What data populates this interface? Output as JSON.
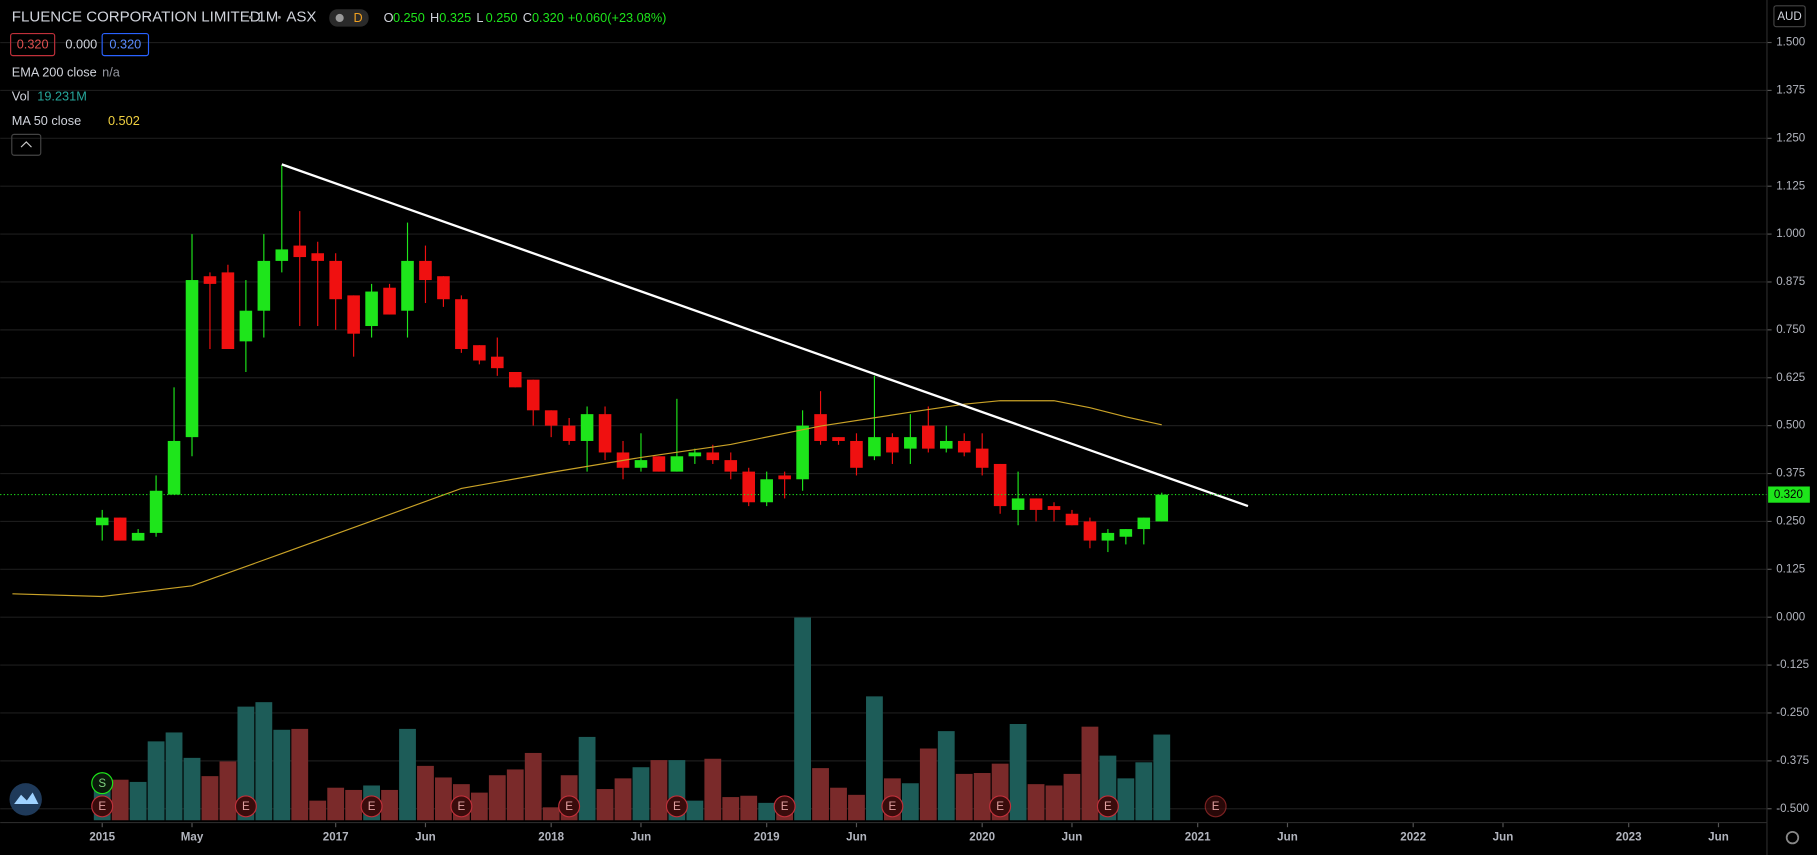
{
  "header": {
    "symbol": "FLUENCE CORPORATION LIMITED",
    "interval": "1M",
    "exchange": "ASX",
    "interval_badge": "D",
    "ohlc": [
      {
        "key": "O",
        "value": "0.250"
      },
      {
        "key": "H",
        "value": "0.325"
      },
      {
        "key": "L",
        "value": "0.250"
      },
      {
        "key": "C",
        "value": "0.320"
      }
    ],
    "change": "+0.060",
    "change_pct": "(+23.08%)",
    "bid": "0.320",
    "spread": "0.000",
    "ask": "0.320",
    "indicators": [
      {
        "name": "EMA 200 close",
        "value": "n/a"
      },
      {
        "name": "Vol",
        "value": "19.231M"
      },
      {
        "name": "MA 50 close",
        "value": "0.502"
      }
    ],
    "currency": "AUD"
  },
  "chart_data": {
    "type": "candlestick",
    "xlim": [
      -5.68,
      92.7
    ],
    "ylim": [
      -0.53,
      1.611
    ],
    "xticks": [
      {
        "value": 0,
        "label": "2015"
      },
      {
        "value": 5,
        "label": "May"
      },
      {
        "value": 13,
        "label": "2017"
      },
      {
        "value": 18,
        "label": "Jun"
      },
      {
        "value": 25,
        "label": "2018"
      },
      {
        "value": 30,
        "label": "Jun"
      },
      {
        "value": 37,
        "label": "2019"
      },
      {
        "value": 42,
        "label": "Jun"
      },
      {
        "value": 49,
        "label": "2020"
      },
      {
        "value": 54,
        "label": "Jun"
      },
      {
        "value": 61,
        "label": "2021"
      },
      {
        "value": 66,
        "label": "Jun"
      },
      {
        "value": 73,
        "label": "2022"
      },
      {
        "value": 78,
        "label": "Jun"
      },
      {
        "value": 85,
        "label": "2023"
      },
      {
        "value": 90,
        "label": "Jun"
      }
    ],
    "yticks": [
      {
        "value": 1.5,
        "label": "1.500"
      },
      {
        "value": 1.375,
        "label": "1.375"
      },
      {
        "value": 1.25,
        "label": "1.250"
      },
      {
        "value": 1.125,
        "label": "1.125"
      },
      {
        "value": 1,
        "label": "1.000"
      },
      {
        "value": 0.875,
        "label": "0.875"
      },
      {
        "value": 0.75,
        "label": "0.750"
      },
      {
        "value": 0.625,
        "label": "0.625"
      },
      {
        "value": 0.5,
        "label": "0.500"
      },
      {
        "value": 0.375,
        "label": "0.375"
      },
      {
        "value": 0.25,
        "label": "0.250"
      },
      {
        "value": 0.125,
        "label": "0.125"
      },
      {
        "value": 0,
        "label": "0.000"
      },
      {
        "value": -0.125,
        "label": "-0.125"
      },
      {
        "value": -0.25,
        "label": "-0.250"
      },
      {
        "value": -0.375,
        "label": "-0.375"
      },
      {
        "value": -0.5,
        "label": "-0.500"
      }
    ],
    "grid": true,
    "up_color": "#1ee51b",
    "down_color": "#f01010",
    "vol_up_color": "#1d5c58",
    "vol_down_color": "#7a2a2a",
    "x": [
      0,
      1,
      2,
      3,
      4,
      5,
      6,
      7,
      8,
      9,
      10,
      11,
      12,
      13,
      14,
      15,
      16,
      17,
      18,
      19,
      20,
      21,
      22,
      23,
      24,
      25,
      26,
      27,
      28,
      29,
      30,
      31,
      32,
      33,
      34,
      35,
      36,
      37,
      38,
      39,
      40,
      41,
      42,
      43,
      44,
      45,
      46,
      47,
      48,
      49,
      50,
      51,
      52,
      53,
      54,
      55,
      56,
      57,
      58,
      59
    ],
    "open": [
      0.24,
      0.26,
      0.2,
      0.22,
      0.32,
      0.47,
      0.89,
      0.9,
      0.72,
      0.8,
      0.93,
      0.97,
      0.95,
      0.93,
      0.84,
      0.76,
      0.86,
      0.8,
      0.93,
      0.89,
      0.83,
      0.71,
      0.68,
      0.64,
      0.62,
      0.54,
      0.5,
      0.46,
      0.53,
      0.43,
      0.39,
      0.42,
      0.38,
      0.42,
      0.43,
      0.41,
      0.38,
      0.3,
      0.37,
      0.36,
      0.53,
      0.47,
      0.46,
      0.42,
      0.47,
      0.44,
      0.5,
      0.44,
      0.46,
      0.44,
      0.4,
      0.28,
      0.31,
      0.29,
      0.27,
      0.25,
      0.2,
      0.21,
      0.23,
      0.25
    ],
    "high": [
      0.28,
      0.26,
      0.23,
      0.37,
      0.6,
      1.0,
      0.9,
      0.92,
      0.88,
      1.0,
      1.18,
      1.06,
      0.98,
      0.95,
      0.84,
      0.87,
      0.87,
      1.03,
      0.97,
      0.89,
      0.84,
      0.71,
      0.73,
      0.64,
      0.62,
      0.54,
      0.52,
      0.55,
      0.55,
      0.46,
      0.48,
      0.42,
      0.57,
      0.44,
      0.45,
      0.43,
      0.39,
      0.38,
      0.38,
      0.54,
      0.59,
      0.47,
      0.48,
      0.63,
      0.48,
      0.53,
      0.55,
      0.5,
      0.48,
      0.48,
      0.4,
      0.38,
      0.31,
      0.3,
      0.28,
      0.26,
      0.23,
      0.23,
      0.26,
      0.325
    ],
    "low": [
      0.2,
      0.2,
      0.2,
      0.21,
      0.32,
      0.42,
      0.7,
      0.7,
      0.64,
      0.73,
      0.9,
      0.76,
      0.76,
      0.75,
      0.68,
      0.73,
      0.79,
      0.73,
      0.82,
      0.81,
      0.69,
      0.66,
      0.63,
      0.6,
      0.5,
      0.47,
      0.45,
      0.38,
      0.41,
      0.36,
      0.38,
      0.38,
      0.38,
      0.4,
      0.4,
      0.36,
      0.29,
      0.29,
      0.31,
      0.33,
      0.45,
      0.45,
      0.37,
      0.41,
      0.4,
      0.4,
      0.43,
      0.43,
      0.42,
      0.37,
      0.27,
      0.24,
      0.25,
      0.25,
      0.24,
      0.18,
      0.17,
      0.19,
      0.19,
      0.25
    ],
    "close": [
      0.26,
      0.2,
      0.22,
      0.33,
      0.46,
      0.88,
      0.87,
      0.7,
      0.8,
      0.93,
      0.96,
      0.94,
      0.93,
      0.83,
      0.74,
      0.85,
      0.79,
      0.93,
      0.88,
      0.83,
      0.7,
      0.67,
      0.65,
      0.6,
      0.54,
      0.5,
      0.46,
      0.53,
      0.43,
      0.39,
      0.41,
      0.38,
      0.42,
      0.43,
      0.41,
      0.38,
      0.3,
      0.36,
      0.36,
      0.5,
      0.46,
      0.46,
      0.39,
      0.47,
      0.43,
      0.47,
      0.44,
      0.46,
      0.43,
      0.39,
      0.29,
      0.31,
      0.28,
      0.28,
      0.24,
      0.2,
      0.22,
      0.23,
      0.26,
      0.32
    ],
    "volume": [
      9.1,
      9.1,
      8.6,
      17.7,
      19.7,
      14.0,
      9.9,
      13.2,
      25.5,
      26.5,
      20.3,
      20.5,
      4.4,
      7.3,
      6.8,
      7.8,
      6.8,
      20.5,
      12.2,
      9.6,
      8.1,
      6.2,
      10.1,
      11.4,
      15.1,
      2.9,
      10.1,
      18.7,
      7.0,
      9.4,
      11.9,
      13.5,
      13.5,
      4.4,
      13.8,
      5.2,
      5.5,
      3.9,
      4.2,
      45.5,
      11.7,
      7.3,
      5.7,
      27.8,
      9.4,
      8.3,
      16.1,
      20.0,
      10.4,
      10.6,
      12.7,
      21.6,
      8.1,
      7.8,
      10.4,
      21.0,
      14.5,
      9.4,
      13.0,
      19.231
    ],
    "series": [
      {
        "name": "MA 50 close",
        "color": "#c9a227",
        "x": [
          -5,
          0,
          5,
          10,
          15,
          20,
          25,
          30,
          35,
          40,
          45,
          48,
          50,
          53,
          55,
          57,
          59
        ],
        "values": [
          0.061,
          0.054,
          0.082,
          0.166,
          0.251,
          0.336,
          0.378,
          0.417,
          0.451,
          0.499,
          0.535,
          0.556,
          0.565,
          0.565,
          0.547,
          0.523,
          0.502
        ]
      }
    ],
    "trendline": {
      "color": "#ffffff",
      "x": [
        10,
        63.8
      ],
      "values": [
        1.182,
        0.29
      ]
    },
    "last_price": {
      "value": 0.32,
      "label": "0.320"
    },
    "events": [
      {
        "label": "S",
        "x": 0
      },
      {
        "label": "E",
        "x": 0
      },
      {
        "label": "E",
        "x": 8
      },
      {
        "label": "E",
        "x": 15
      },
      {
        "label": "E",
        "x": 20
      },
      {
        "label": "E",
        "x": 26
      },
      {
        "label": "E",
        "x": 32
      },
      {
        "label": "E",
        "x": 38
      },
      {
        "label": "E",
        "x": 44
      },
      {
        "label": "E",
        "x": 50
      },
      {
        "label": "E",
        "x": 56
      },
      {
        "label": "E",
        "x": 62
      }
    ]
  }
}
